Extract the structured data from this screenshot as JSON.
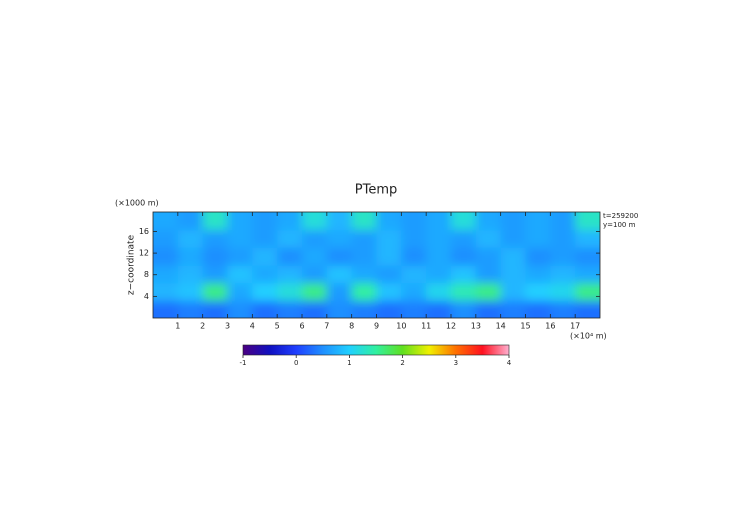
{
  "chart_data": {
    "type": "heatmap",
    "title": "PTemp",
    "xlabel": "(×10⁴ m)",
    "ylabel": "z−coordinate",
    "ylabel_unit": "(×1000 m)",
    "annotations": [
      "t=259200",
      "y=100 m"
    ],
    "x": [
      0.5,
      1.5,
      2.5,
      3.5,
      4.5,
      5.5,
      6.5,
      7.5,
      8.5,
      9.5,
      10.5,
      11.5,
      12.5,
      13.5,
      14.5,
      15.5,
      16.5,
      17.5
    ],
    "z": [
      1.6,
      4.9,
      8.2,
      11.4,
      14.7,
      18.0
    ],
    "values": [
      [
        0.3,
        0.4,
        0.3,
        0.5,
        0.3,
        0.4,
        0.3,
        0.5,
        0.4,
        0.3,
        0.4,
        0.3,
        0.5,
        0.3,
        0.4,
        0.3,
        0.4,
        0.3
      ],
      [
        0.8,
        0.9,
        1.6,
        0.7,
        1.0,
        1.2,
        1.6,
        0.6,
        1.5,
        0.9,
        0.7,
        1.1,
        1.4,
        1.6,
        0.8,
        1.0,
        1.1,
        1.6
      ],
      [
        0.7,
        0.8,
        0.6,
        0.9,
        0.7,
        0.8,
        0.6,
        0.9,
        0.7,
        0.6,
        0.8,
        0.7,
        0.9,
        0.6,
        0.8,
        0.7,
        0.8,
        0.7
      ],
      [
        0.5,
        0.7,
        0.5,
        0.6,
        0.8,
        0.5,
        0.7,
        0.5,
        0.6,
        0.8,
        0.5,
        0.7,
        0.5,
        0.6,
        0.8,
        0.5,
        0.6,
        0.5
      ],
      [
        0.6,
        0.8,
        0.6,
        0.7,
        0.6,
        0.8,
        0.6,
        0.7,
        0.6,
        0.8,
        0.6,
        0.7,
        0.6,
        0.8,
        0.6,
        0.7,
        0.6,
        0.8
      ],
      [
        0.7,
        0.6,
        1.3,
        0.7,
        0.6,
        0.7,
        1.2,
        0.8,
        1.3,
        0.7,
        0.6,
        0.7,
        1.2,
        0.7,
        0.6,
        0.7,
        0.6,
        1.3
      ]
    ],
    "xlim": [
      0,
      18
    ],
    "ylim": [
      0,
      19.6
    ],
    "xticks": [
      1,
      2,
      3,
      4,
      5,
      6,
      7,
      8,
      9,
      10,
      11,
      12,
      13,
      14,
      15,
      16,
      17
    ],
    "yticks": [
      4,
      8,
      12,
      16
    ],
    "colorbar": {
      "lim": [
        -1,
        4
      ],
      "ticks": [
        -1,
        0,
        1,
        2,
        3,
        4
      ],
      "colors": [
        "#4b0082",
        "#1010c0",
        "#1f3fff",
        "#1f8fff",
        "#20d0ff",
        "#30f0a0",
        "#60e020",
        "#f0f000",
        "#ff7000",
        "#ff1020",
        "#ffb0d0"
      ]
    }
  }
}
